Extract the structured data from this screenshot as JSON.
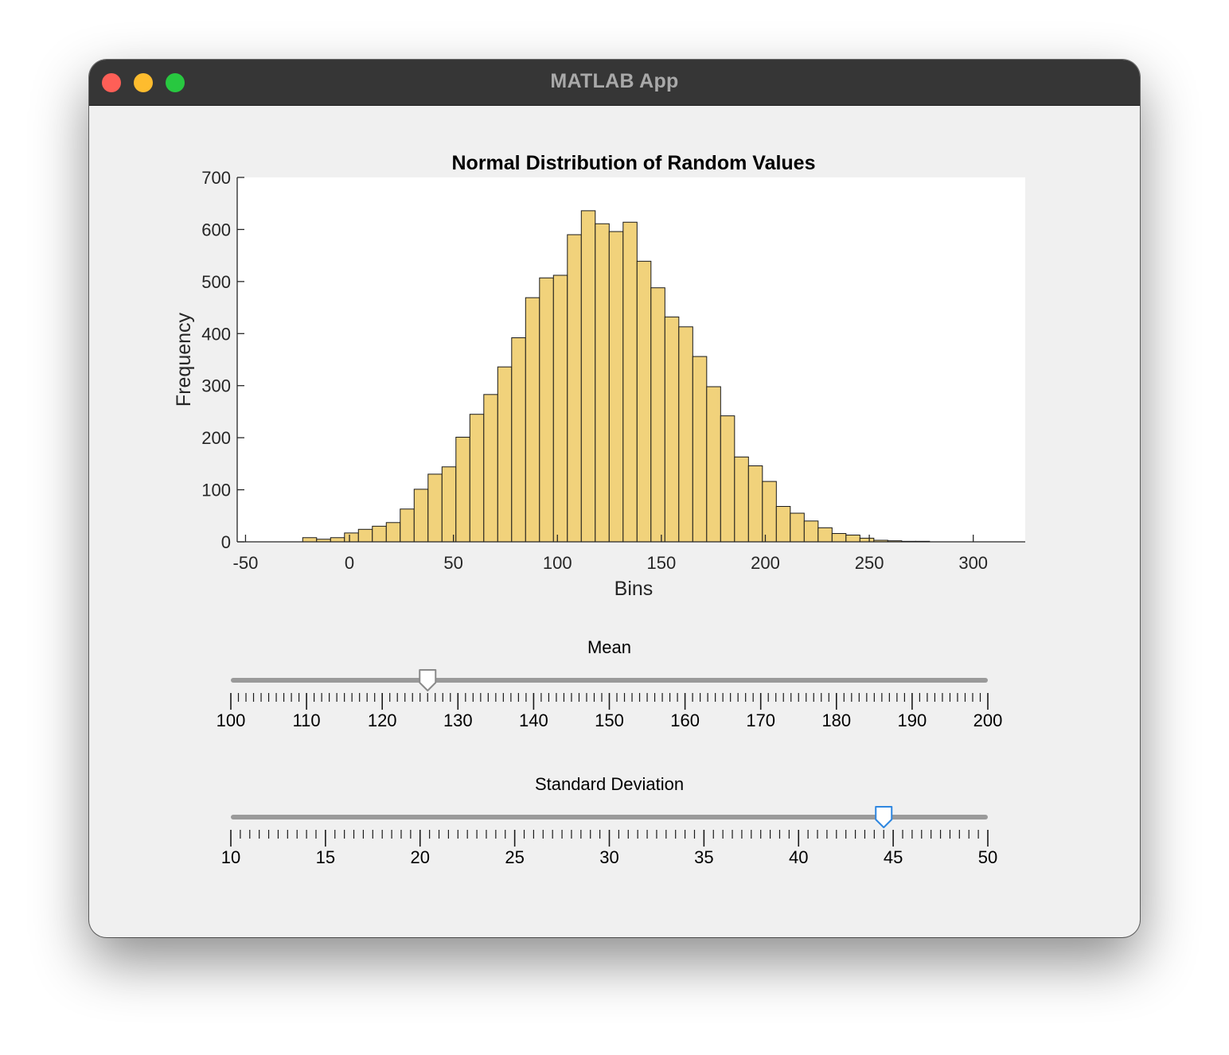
{
  "window": {
    "title": "MATLAB App"
  },
  "colors": {
    "titlebar": "#363636",
    "bar_fill": "#f1d27b",
    "bar_edge": "#1a1a1a",
    "thumb_default": "#ffffff",
    "thumb_active_border": "#2f87e0",
    "track": "#9a9a9a",
    "window_bg": "#f0f0f0"
  },
  "chart_data": {
    "type": "bar",
    "title": "Normal Distribution of Random Values",
    "xlabel": "Bins",
    "ylabel": "Frequency",
    "xlim": [
      -54,
      325
    ],
    "ylim": [
      0,
      700
    ],
    "xticks": [
      -50,
      0,
      50,
      100,
      150,
      200,
      250,
      300
    ],
    "yticks": [
      0,
      100,
      200,
      300,
      400,
      500,
      600,
      700
    ],
    "bin_edges": [
      -22.5,
      -15.8,
      -9.1,
      -2.4,
      4.3,
      11.0,
      17.7,
      24.4,
      31.1,
      37.8,
      44.5,
      51.2,
      57.9,
      64.6,
      71.3,
      78.0,
      84.7,
      91.4,
      98.1,
      104.8,
      111.5,
      118.2,
      124.9,
      131.6,
      138.3,
      145.0,
      151.7,
      158.4,
      165.1,
      171.8,
      178.5,
      185.2,
      191.9,
      198.6,
      205.3,
      212.0,
      218.7,
      225.4,
      232.1,
      238.8,
      245.5,
      252.2,
      258.9,
      265.6,
      272.3,
      279.0
    ],
    "values": [
      8,
      5,
      8,
      17,
      24,
      30,
      37,
      63,
      101,
      130,
      144,
      201,
      245,
      283,
      336,
      392,
      469,
      507,
      512,
      590,
      636,
      611,
      596,
      614,
      539,
      488,
      432,
      413,
      356,
      298,
      242,
      163,
      146,
      116,
      68,
      55,
      40,
      27,
      16,
      13,
      7,
      3,
      2,
      1,
      1
    ]
  },
  "sliders": [
    {
      "label": "Mean",
      "min": 100,
      "max": 200,
      "value": 126,
      "major_ticks": [
        "100",
        "110",
        "120",
        "130",
        "140",
        "150",
        "160",
        "170",
        "180",
        "190",
        "200"
      ],
      "minor_per_major": 10,
      "active": false
    },
    {
      "label": "Standard Deviation",
      "min": 10,
      "max": 50,
      "value": 44.5,
      "major_ticks": [
        "10",
        "15",
        "20",
        "25",
        "30",
        "35",
        "40",
        "45",
        "50"
      ],
      "minor_per_major": 10,
      "active": true
    }
  ]
}
